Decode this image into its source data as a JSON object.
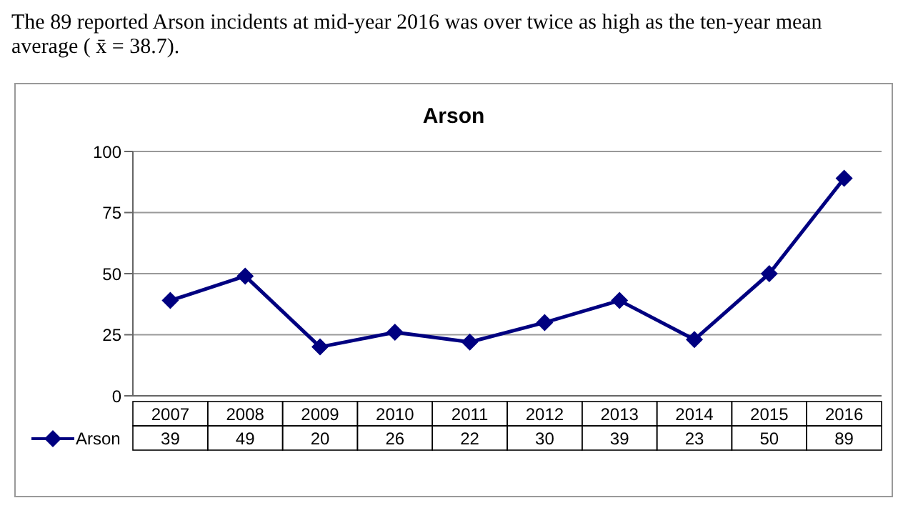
{
  "chart_data": {
    "type": "line",
    "title": "Arson",
    "annotations": [
      "The 89 reported Arson incidents at mid-year 2016 was over twice as high as the ten-year mean average ( x̄ = 38.7)."
    ],
    "categories": [
      "2007",
      "2008",
      "2009",
      "2010",
      "2011",
      "2012",
      "2013",
      "2014",
      "2015",
      "2016"
    ],
    "series": [
      {
        "name": "Arson",
        "color": "#000080",
        "values": [
          39,
          49,
          20,
          26,
          22,
          30,
          39,
          23,
          50,
          89
        ]
      }
    ],
    "ylim": [
      0,
      100
    ],
    "yticks": [
      0,
      25,
      50,
      75,
      100
    ],
    "grid": "y",
    "legend": "bottom left",
    "marker": "diamond",
    "line_style": "solid",
    "data_labels": true
  }
}
